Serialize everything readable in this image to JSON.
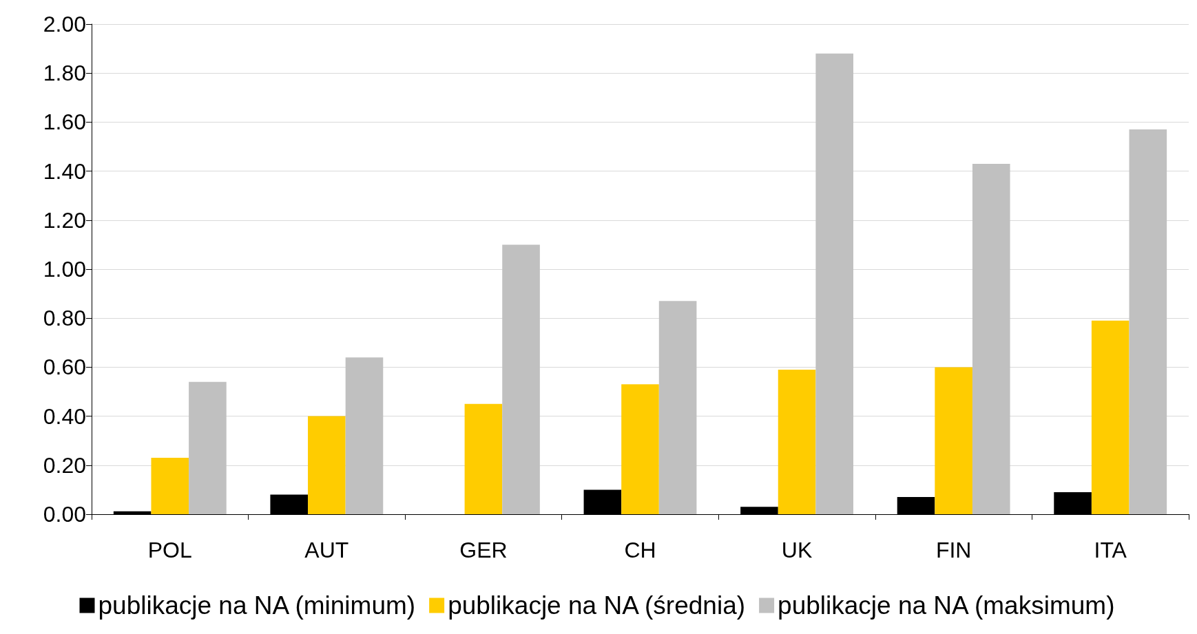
{
  "chart_data": {
    "type": "bar",
    "categories": [
      "POL",
      "AUT",
      "GER",
      "CH",
      "UK",
      "FIN",
      "ITA"
    ],
    "series": [
      {
        "name": "publikacje na NA (minimum)",
        "color": "#000000",
        "values": [
          0.012,
          0.08,
          0,
          0.1,
          0.03,
          0.07,
          0.09
        ]
      },
      {
        "name": "publikacje na NA (średnia)",
        "color": "#ffcc00",
        "values": [
          0.23,
          0.4,
          0.45,
          0.53,
          0.59,
          0.6,
          0.79
        ]
      },
      {
        "name": "publikacje na NA (maksimum)",
        "color": "#c0c0c0",
        "values": [
          0.54,
          0.64,
          1.1,
          0.87,
          1.88,
          1.43,
          1.57
        ]
      }
    ],
    "ylim": [
      0,
      2
    ],
    "yticks": [
      {
        "value": 0,
        "label": "0.00"
      },
      {
        "value": 0.2,
        "label": "0.20"
      },
      {
        "value": 0.4,
        "label": "0.40"
      },
      {
        "value": 0.6,
        "label": "0.60"
      },
      {
        "value": 0.8,
        "label": "0.80"
      },
      {
        "value": 1,
        "label": "1.00"
      },
      {
        "value": 1.2,
        "label": "1.20"
      },
      {
        "value": 1.4,
        "label": "1.40"
      },
      {
        "value": 1.6,
        "label": "1.60"
      },
      {
        "value": 1.8,
        "label": "1.80"
      },
      {
        "value": 2,
        "label": "2.00"
      }
    ],
    "grid": "y",
    "legend": "bottom"
  }
}
